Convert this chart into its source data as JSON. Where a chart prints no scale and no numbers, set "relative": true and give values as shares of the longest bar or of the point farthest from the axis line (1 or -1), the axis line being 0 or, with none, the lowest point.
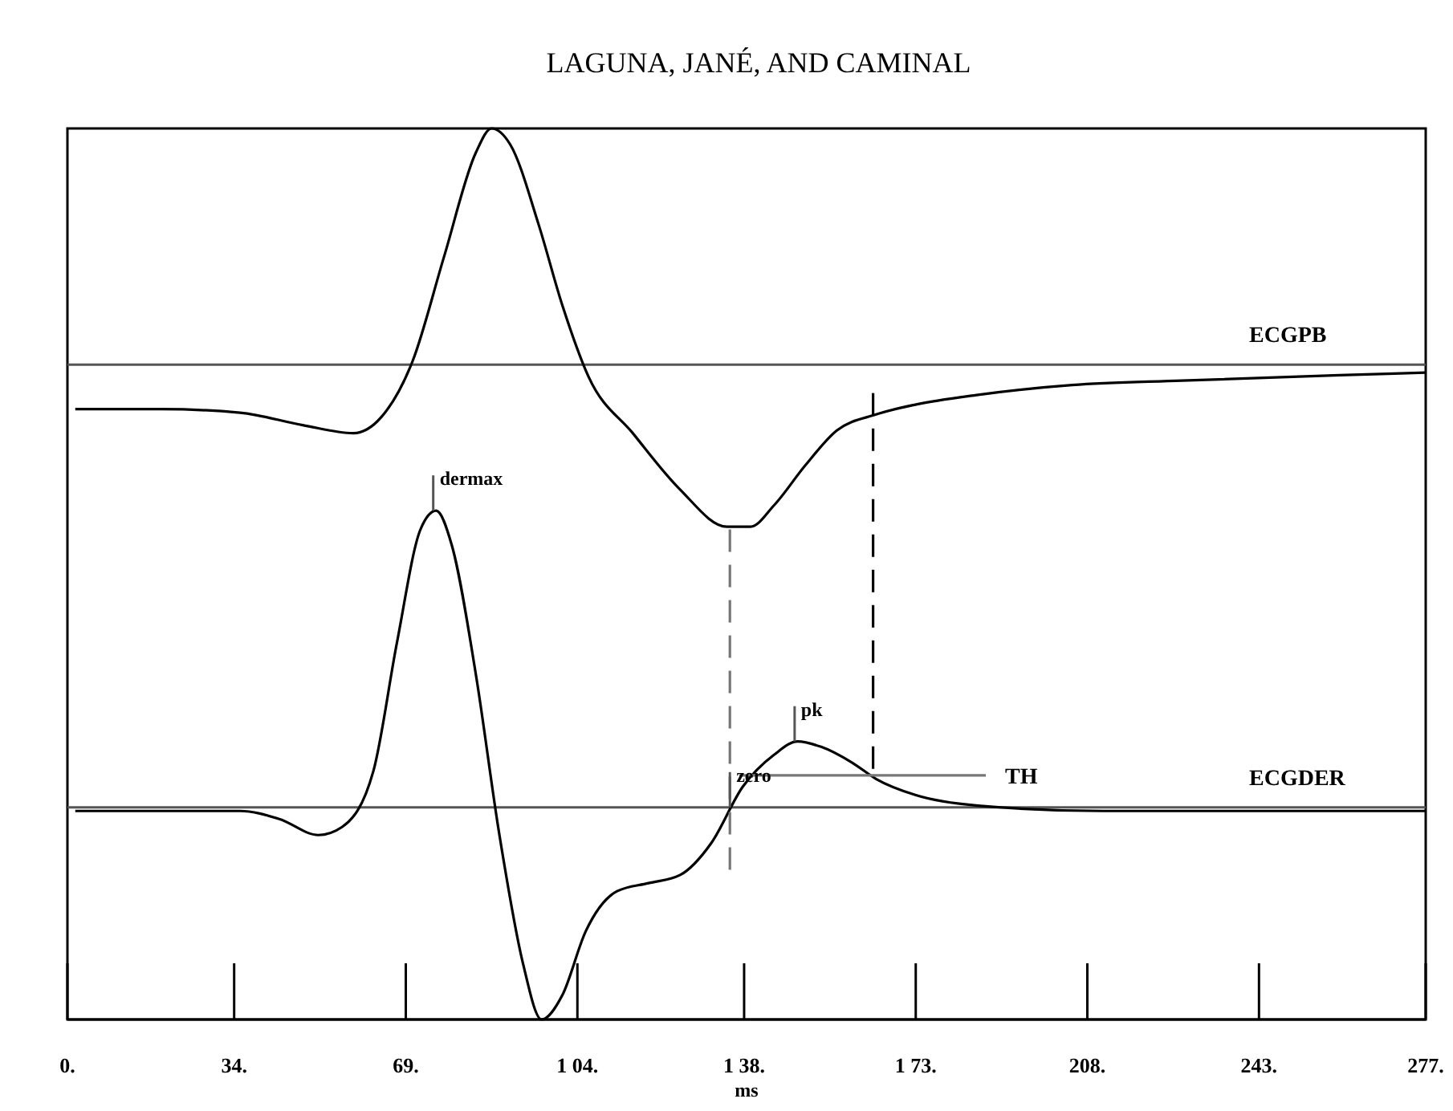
{
  "chart_data": {
    "type": "line",
    "title": "LAGUNA, JANÉ, AND CAMINAL",
    "xlabel": "ms",
    "relative": true,
    "xlim": [
      0,
      277
    ],
    "xticks": [
      {
        "value": 0,
        "label": "0."
      },
      {
        "value": 34,
        "label": "34."
      },
      {
        "value": 69,
        "label": "69."
      },
      {
        "value": 104,
        "label": "1 04."
      },
      {
        "value": 138,
        "label": "1 38."
      },
      {
        "value": 173,
        "label": "1 73."
      },
      {
        "value": 208,
        "label": "208."
      },
      {
        "value": 243,
        "label": "243."
      },
      {
        "value": 277,
        "label": "277."
      }
    ],
    "tick_labels": "x",
    "marker": "none",
    "series": [
      {
        "color": "#000000",
        "x": [
          1.6,
          19.2,
          35.2,
          48,
          58.3,
          64,
          70.4,
          76.8,
          83.3,
          86.5,
          90.3,
          96.1,
          100.9,
          106.3,
          115.3,
          124.9,
          134.5,
          139.3,
          144.1,
          150.5,
          156.9,
          164.9,
          172.9,
          185.7,
          204.9,
          227.3,
          259.4,
          277
        ],
        "values": [
          0.685,
          0.685,
          0.681,
          0.667,
          0.658,
          0.676,
          0.739,
          0.856,
          0.973,
          1,
          0.982,
          0.892,
          0.802,
          0.721,
          0.658,
          0.595,
          0.553,
          0.553,
          0.577,
          0.622,
          0.661,
          0.679,
          0.69,
          0.701,
          0.712,
          0.717,
          0.723,
          0.726
        ]
      },
      {
        "color": "#000000",
        "x": [
          1.6,
          35.2,
          43.2,
          51.2,
          56,
          62.4,
          67.2,
          72,
          75.2,
          78.4,
          83.3,
          88.1,
          92.9,
          96.7,
          100.9,
          105.7,
          112.1,
          118.5,
          124.9,
          131.3,
          137.7,
          144.1,
          148.9,
          153.7,
          160.1,
          164.9,
          172.9,
          185.7,
          211.3,
          277
        ],
        "values": [
          0.234,
          0.234,
          0.225,
          0.207,
          0.216,
          0.279,
          0.423,
          0.55,
          0.571,
          0.532,
          0.387,
          0.207,
          0.063,
          0,
          0.027,
          0.099,
          0.144,
          0.153,
          0.162,
          0.198,
          0.261,
          0.297,
          0.312,
          0.306,
          0.288,
          0.27,
          0.252,
          0.24,
          0.234,
          0.234
        ]
      },
      {
        "name": "TH",
        "color": "#777777",
        "x": [
          137,
          187.3
        ],
        "values": [
          0.274,
          0.274
        ]
      },
      {
        "color": "#777777",
        "line_style": "dashed",
        "x": [
          135.1,
          135.1
        ],
        "values": [
          0.55,
          0.162
        ]
      },
      {
        "color": "#000000",
        "line_style": "dashed",
        "x": [
          164.3,
          164.3
        ],
        "values": [
          0.703,
          0.279
        ]
      }
    ],
    "ref_lines": [
      {
        "axis": "y",
        "value": 0.735,
        "label": "ECGPB",
        "color": "#555555"
      },
      {
        "axis": "y",
        "value": 0.238,
        "label": "ECGDER",
        "color": "#555555"
      }
    ],
    "annotations": [
      {
        "text": "dermax",
        "x": 74.6,
        "y": 0.571
      },
      {
        "text": "pk",
        "x": 148.3,
        "y": 0.312
      },
      {
        "text": "zero",
        "x": 135.1,
        "y": 0.238
      }
    ]
  }
}
